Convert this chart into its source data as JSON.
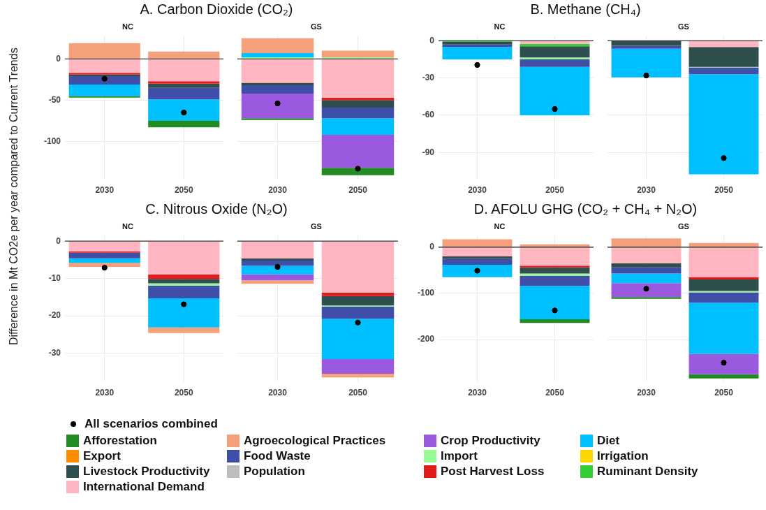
{
  "chart_data": [
    {
      "type": "bar",
      "title": "A. Carbon Dioxide (CO₂)",
      "subtitle": "NC",
      "ylabel": "Difference in Mt CO2e per year compared to Current Trends",
      "categories": [
        "2030",
        "2050"
      ],
      "stacked": true,
      "grid": true,
      "legend": "bottom",
      "ylim": [
        -145,
        28
      ],
      "yticks": [
        -100,
        -50,
        0
      ],
      "ref_lines": [
        {
          "axis": "y",
          "value": 0,
          "color": "#333333"
        }
      ],
      "series": [
        {
          "name": "International Demand",
          "color": "#ffb6c1",
          "values": [
            -17,
            -27
          ]
        },
        {
          "name": "Ruminant Density",
          "color": "#32cd32",
          "values": [
            null,
            null
          ]
        },
        {
          "name": "Post Harvest Loss",
          "color": "#e31a1c",
          "values": [
            -2,
            -3
          ]
        },
        {
          "name": "Population",
          "color": "#bebebe",
          "values": [
            null,
            null
          ]
        },
        {
          "name": "Livestock Productivity",
          "color": "#2f4f4f",
          "values": [
            -2,
            -5
          ]
        },
        {
          "name": "Irrigation",
          "color": "#ffd700",
          "values": [
            null,
            null
          ]
        },
        {
          "name": "Import",
          "color": "#98fb98",
          "values": [
            null,
            null
          ]
        },
        {
          "name": "Food Waste",
          "color": "#3f4fa8",
          "values": [
            -10,
            -14
          ]
        },
        {
          "name": "Export",
          "color": "#ff8c00",
          "values": [
            null,
            null
          ]
        },
        {
          "name": "Diet",
          "color": "#00bfff",
          "values": [
            -14,
            -26
          ]
        },
        {
          "name": "Crop Productivity",
          "color": "#9b59e0",
          "values": [
            null,
            null
          ]
        },
        {
          "name": "Agroecological Practices",
          "color": "#f4a07a",
          "values": [
            19,
            9
          ]
        },
        {
          "name": "Afforestation",
          "color": "#228b22",
          "values": [
            -2,
            -8
          ]
        },
        {
          "name": "All scenarios combined",
          "type": "scatter",
          "marker": "circle",
          "color": "#000000",
          "values": [
            -24,
            -65
          ]
        }
      ]
    },
    {
      "type": "bar",
      "subtitle": "GS",
      "categories": [
        "2030",
        "2050"
      ],
      "stacked": true,
      "grid": true,
      "tick_labels": "x",
      "ylim": [
        -145,
        28
      ],
      "yticks": [
        -100,
        -50,
        0
      ],
      "ref_lines": [
        {
          "axis": "y",
          "value": 0,
          "color": "#333333"
        }
      ],
      "series": [
        {
          "color": "#ffb6c1",
          "values": [
            -29,
            -47
          ]
        },
        {
          "color": "#e31a1c",
          "values": [
            null,
            -3
          ]
        },
        {
          "color": "#2f4f4f",
          "values": [
            -3,
            -9
          ]
        },
        {
          "color": "#98fb98",
          "values": [
            2,
            2
          ]
        },
        {
          "color": "#3f4fa8",
          "values": [
            -10,
            -13
          ]
        },
        {
          "color": "#00bfff",
          "values": [
            5,
            -20
          ]
        },
        {
          "color": "#9b59e0",
          "values": [
            -30,
            -40
          ]
        },
        {
          "color": "#f4a07a",
          "values": [
            18,
            8
          ]
        },
        {
          "color": "#228b22",
          "values": [
            -2,
            -9
          ]
        },
        {
          "type": "scatter",
          "marker": "circle",
          "color": "#000000",
          "values": [
            -54,
            -133
          ]
        }
      ]
    },
    {
      "type": "bar",
      "title": "B. Methane (CH₄)",
      "subtitle": "NC",
      "categories": [
        "2030",
        "2050"
      ],
      "stacked": true,
      "grid": true,
      "ylim": [
        -111,
        4
      ],
      "yticks": [
        -90,
        -60,
        -30,
        0
      ],
      "ref_lines": [
        {
          "axis": "y",
          "value": 0,
          "color": "#333333"
        }
      ],
      "series": [
        {
          "color": "#ffb6c1",
          "values": [
            null,
            -2.5
          ]
        },
        {
          "color": "#32cd32",
          "values": [
            -1,
            -2
          ]
        },
        {
          "color": "#2f4f4f",
          "values": [
            -2,
            -9
          ]
        },
        {
          "color": "#98fb98",
          "values": [
            null,
            -1.5
          ]
        },
        {
          "color": "#3f4fa8",
          "values": [
            -2,
            -6
          ]
        },
        {
          "color": "#00bfff",
          "values": [
            -10,
            -39
          ]
        },
        {
          "type": "scatter",
          "marker": "circle",
          "color": "#000000",
          "values": [
            -19.5,
            -55
          ]
        }
      ]
    },
    {
      "type": "bar",
      "subtitle": "GS",
      "categories": [
        "2030",
        "2050"
      ],
      "stacked": true,
      "grid": true,
      "tick_labels": "x",
      "ylim": [
        -111,
        4
      ],
      "yticks": [
        -90,
        -60,
        -30,
        0
      ],
      "ref_lines": [
        {
          "axis": "y",
          "value": 0,
          "color": "#333333"
        }
      ],
      "series": [
        {
          "color": "#ffb6c1",
          "values": [
            null,
            -5
          ]
        },
        {
          "color": "#2f4f4f",
          "values": [
            -4,
            -16
          ]
        },
        {
          "color": "#98fb98",
          "values": [
            null,
            -0.5
          ]
        },
        {
          "color": "#3f4fa8",
          "values": [
            -2.5,
            -5.5
          ]
        },
        {
          "color": "#00bfff",
          "values": [
            -23,
            -80.5
          ]
        },
        {
          "type": "scatter",
          "marker": "circle",
          "color": "#000000",
          "values": [
            -28,
            -94.5
          ]
        }
      ]
    },
    {
      "type": "bar",
      "title": "C. Nitrous Oxide (N₂O)",
      "subtitle": "NC",
      "categories": [
        "2030",
        "2050"
      ],
      "stacked": true,
      "grid": true,
      "ylim": [
        -37.5,
        1.5
      ],
      "yticks": [
        -30,
        -20,
        -10,
        0
      ],
      "ref_lines": [
        {
          "axis": "y",
          "value": 0,
          "color": "#333333"
        }
      ],
      "series": [
        {
          "color": "#ffb6c1",
          "values": [
            -2.7,
            -8.9
          ]
        },
        {
          "color": "#e31a1c",
          "values": [
            -0.4,
            -1.2
          ]
        },
        {
          "color": "#2f4f4f",
          "values": [
            null,
            -1.2
          ]
        },
        {
          "color": "#98fb98",
          "values": [
            null,
            -0.6
          ]
        },
        {
          "color": "#3f4fa8",
          "values": [
            -1.5,
            -3.4
          ]
        },
        {
          "color": "#00bfff",
          "values": [
            -1.2,
            -7.8
          ]
        },
        {
          "color": "#f4a07a",
          "values": [
            -1.1,
            -1.5
          ]
        },
        {
          "type": "scatter",
          "marker": "circle",
          "color": "#000000",
          "values": [
            -7.1,
            -16.9
          ]
        }
      ]
    },
    {
      "type": "bar",
      "subtitle": "GS",
      "categories": [
        "2030",
        "2050"
      ],
      "stacked": true,
      "grid": true,
      "tick_labels": "x",
      "ylim": [
        -37.5,
        1.5
      ],
      "yticks": [
        -30,
        -20,
        -10,
        0
      ],
      "ref_lines": [
        {
          "axis": "y",
          "value": 0,
          "color": "#333333"
        }
      ],
      "series": [
        {
          "color": "#ffb6c1",
          "values": [
            -4.6,
            -13.8
          ]
        },
        {
          "color": "#e31a1c",
          "values": [
            null,
            -0.9
          ]
        },
        {
          "color": "#2f4f4f",
          "values": [
            -0.6,
            -2.5
          ]
        },
        {
          "color": "#98fb98",
          "values": [
            null,
            -0.3
          ]
        },
        {
          "color": "#3f4fa8",
          "values": [
            -1.4,
            -3.3
          ]
        },
        {
          "color": "#00bfff",
          "values": [
            -2.3,
            -10.8
          ]
        },
        {
          "color": "#9b59e0",
          "values": [
            -1.6,
            -3.9
          ]
        },
        {
          "color": "#f4a07a",
          "values": [
            -0.9,
            -1
          ]
        },
        {
          "type": "scatter",
          "marker": "circle",
          "color": "#000000",
          "values": [
            -6.9,
            -21.8
          ]
        }
      ]
    },
    {
      "type": "bar",
      "title": "D. AFOLU GHG (CO₂ + CH₄ + N₂O)",
      "subtitle": "NC",
      "categories": [
        "2030",
        "2050"
      ],
      "stacked": true,
      "grid": true,
      "ylim": [
        -290,
        25
      ],
      "yticks": [
        -200,
        -100,
        0
      ],
      "ref_lines": [
        {
          "axis": "y",
          "value": 0,
          "color": "#333333"
        }
      ],
      "series": [
        {
          "color": "#ffb6c1",
          "values": [
            -20,
            -40
          ]
        },
        {
          "color": "#e31a1c",
          "values": [
            null,
            -4
          ]
        },
        {
          "color": "#2f4f4f",
          "values": [
            -5,
            -13
          ]
        },
        {
          "color": "#98fb98",
          "values": [
            null,
            -5
          ]
        },
        {
          "color": "#3f4fa8",
          "values": [
            -13,
            -22
          ]
        },
        {
          "color": "#00bfff",
          "values": [
            -27,
            -72
          ]
        },
        {
          "color": "#f4a07a",
          "values": [
            17,
            6
          ]
        },
        {
          "color": "#228b22",
          "values": [
            null,
            -8
          ]
        },
        {
          "type": "scatter",
          "marker": "circle",
          "color": "#000000",
          "values": [
            -51,
            -137
          ]
        }
      ]
    },
    {
      "type": "bar",
      "subtitle": "GS",
      "categories": [
        "2030",
        "2050"
      ],
      "stacked": true,
      "grid": true,
      "tick_labels": "x",
      "ylim": [
        -290,
        25
      ],
      "yticks": [
        -200,
        -100,
        0
      ],
      "ref_lines": [
        {
          "axis": "y",
          "value": 0,
          "color": "#333333"
        }
      ],
      "series": [
        {
          "color": "#ffb6c1",
          "values": [
            -35,
            -65
          ]
        },
        {
          "color": "#e31a1c",
          "values": [
            null,
            -5
          ]
        },
        {
          "color": "#2f4f4f",
          "values": [
            -9,
            -25
          ]
        },
        {
          "color": "#98fb98",
          "values": [
            null,
            -3
          ]
        },
        {
          "color": "#3f4fa8",
          "values": [
            -13,
            -22
          ]
        },
        {
          "color": "#00bfff",
          "values": [
            -21,
            -111
          ]
        },
        {
          "color": "#9b59e0",
          "values": [
            -30,
            -44
          ]
        },
        {
          "color": "#f4a07a",
          "values": [
            19,
            9
          ]
        },
        {
          "color": "#228b22",
          "values": [
            -4,
            -9
          ]
        },
        {
          "type": "scatter",
          "marker": "circle",
          "color": "#000000",
          "values": [
            -90,
            -250
          ]
        }
      ]
    }
  ]
}
